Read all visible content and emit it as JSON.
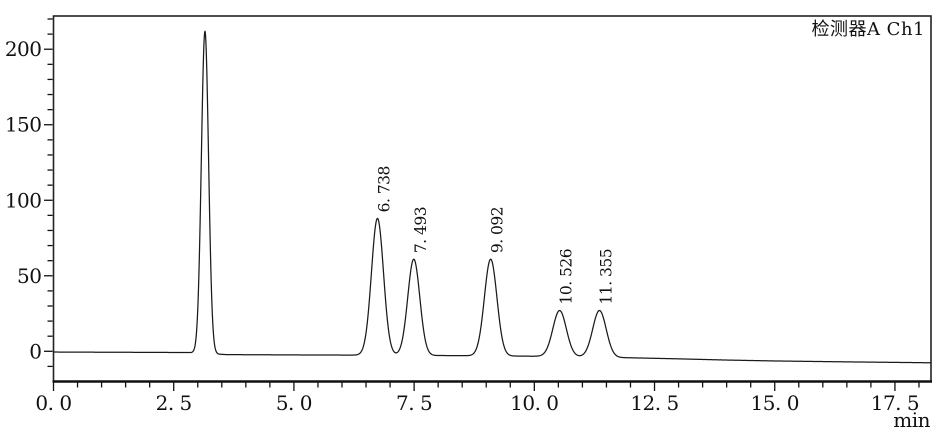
{
  "chart_data": {
    "type": "line",
    "subtype": "hplc-chromatogram",
    "title": "",
    "channel_label": "检测器A Ch1",
    "xlabel": "min",
    "ylabel": "",
    "xlim": [
      0,
      18.25
    ],
    "ylim": [
      -20,
      222
    ],
    "grid": false,
    "trace_color": "#1a1a1a",
    "frame_color": "#222222",
    "text_color": "#111111",
    "background": "#ffffff",
    "x_ticks": [
      {
        "t": 0,
        "label": "0. 0"
      },
      {
        "t": 2.5,
        "label": "2. 5"
      },
      {
        "t": 5,
        "label": "5. 0"
      },
      {
        "t": 7.5,
        "label": "7. 5"
      },
      {
        "t": 10,
        "label": "10. 0"
      },
      {
        "t": 12.5,
        "label": "12. 5"
      },
      {
        "t": 15,
        "label": "15. 0"
      },
      {
        "t": 17.5,
        "label": "17. 5"
      }
    ],
    "x_minor_step": 0.5,
    "x_minor_max": 18.0,
    "y_ticks": [
      {
        "v": 0,
        "label": "0"
      },
      {
        "v": 50,
        "label": "50"
      },
      {
        "v": 100,
        "label": "100"
      },
      {
        "v": 150,
        "label": "150"
      },
      {
        "v": 200,
        "label": "200"
      }
    ],
    "y_minor_step": 10,
    "y_minor_min": -10,
    "y_minor_max": 220,
    "peaks": [
      {
        "rt": 3.15,
        "apex": 212,
        "sigma": 0.075,
        "label": ""
      },
      {
        "rt": 6.738,
        "apex": 88,
        "sigma": 0.125,
        "label": "6. 738"
      },
      {
        "rt": 7.493,
        "apex": 61,
        "sigma": 0.125,
        "label": "7. 493"
      },
      {
        "rt": 9.092,
        "apex": 61,
        "sigma": 0.13,
        "label": "9. 092"
      },
      {
        "rt": 10.526,
        "apex": 27,
        "sigma": 0.14,
        "label": "10. 526"
      },
      {
        "rt": 11.355,
        "apex": 27,
        "sigma": 0.14,
        "label": "11. 355"
      }
    ],
    "baseline_points": [
      [
        0,
        -0.5
      ],
      [
        2.8,
        -0.8
      ],
      [
        3.6,
        -2.2
      ],
      [
        5.0,
        -2.4
      ],
      [
        7.0,
        -2.6
      ],
      [
        9.0,
        -3.0
      ],
      [
        10.5,
        -3.4
      ],
      [
        12.0,
        -4.3
      ],
      [
        13.0,
        -5.0
      ],
      [
        14.0,
        -5.8
      ],
      [
        15.0,
        -6.4
      ],
      [
        16.5,
        -7.0
      ],
      [
        18.25,
        -7.6
      ]
    ]
  }
}
